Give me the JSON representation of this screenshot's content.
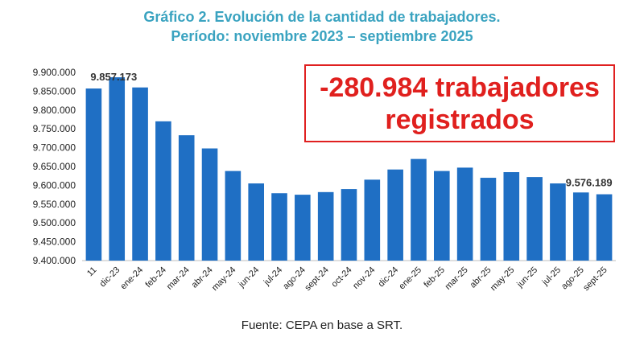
{
  "header": {
    "title_line1": "Gráfico 2. Evolución de la cantidad de trabajadores.",
    "title_line2": "Período: noviembre 2023 – septiembre 2025"
  },
  "callout": {
    "line1": "-280.984 trabajadores",
    "line2": "registrados"
  },
  "footer": {
    "source": "Fuente: CEPA en base a SRT."
  },
  "chart_data": {
    "type": "bar",
    "title": "Gráfico 2. Evolución de la cantidad de trabajadores. Período: noviembre 2023 – septiembre 2025",
    "xlabel": "",
    "ylabel": "",
    "ylim": [
      9400000,
      9900000
    ],
    "y_ticks": [
      "9.400.000",
      "9.450.000",
      "9.500.000",
      "9.550.000",
      "9.600.000",
      "9.650.000",
      "9.700.000",
      "9.750.000",
      "9.800.000",
      "9.850.000",
      "9.900.000"
    ],
    "categories": [
      "11",
      "dic-23",
      "ene-24",
      "feb-24",
      "mar-24",
      "abr-24",
      "may-24",
      "jun-24",
      "jul-24",
      "ago-24",
      "sept-24",
      "oct-24",
      "nov-24",
      "dic-24",
      "ene-25",
      "feb-25",
      "mar-25",
      "abr-25",
      "may-25",
      "jun-25",
      "jul-25",
      "ago-25",
      "sept-25"
    ],
    "values": [
      9857173,
      9887000,
      9860000,
      9770000,
      9733000,
      9698000,
      9638000,
      9605000,
      9579000,
      9575000,
      9582000,
      9590000,
      9615000,
      9642000,
      9670000,
      9638000,
      9647000,
      9620000,
      9635000,
      9622000,
      9605000,
      9581000,
      9576189
    ],
    "data_labels": [
      {
        "category": "11",
        "text": "9.857.173"
      },
      {
        "category": "sept-25",
        "text": "9.576.189"
      }
    ],
    "bar_color": "#1f6fc4"
  }
}
